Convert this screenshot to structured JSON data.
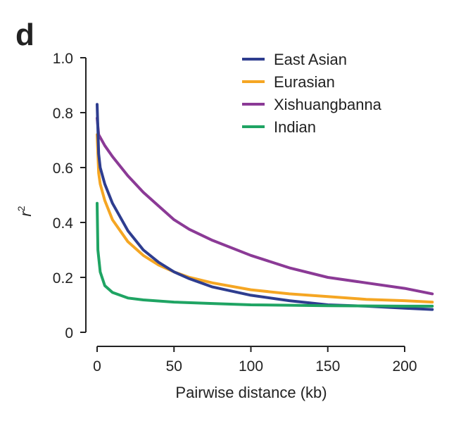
{
  "panel_label": "d",
  "chart_data": {
    "type": "line",
    "title": "",
    "xlabel": "Pairwise distance (kb)",
    "ylabel": "r",
    "ylabel_superscript": "2",
    "xlim": [
      0,
      218
    ],
    "ylim": [
      0,
      1.0
    ],
    "xticks": [
      0,
      50,
      100,
      150,
      200
    ],
    "yticks": [
      0,
      0.2,
      0.4,
      0.6,
      0.8,
      1.0
    ],
    "ytick_labels": [
      "0",
      "0.2",
      "0.4",
      "0.6",
      "0.8",
      "1.0"
    ],
    "grid": false,
    "legend_position": "top-right",
    "series": [
      {
        "name": "East Asian",
        "color": "#2e3d8f",
        "x": [
          0,
          1,
          2,
          5,
          10,
          20,
          30,
          40,
          50,
          60,
          75,
          100,
          125,
          150,
          175,
          200,
          218
        ],
        "y": [
          0.83,
          0.65,
          0.6,
          0.54,
          0.47,
          0.37,
          0.3,
          0.255,
          0.22,
          0.195,
          0.165,
          0.135,
          0.115,
          0.1,
          0.095,
          0.088,
          0.083
        ]
      },
      {
        "name": "Eurasian",
        "color": "#f5a623",
        "x": [
          0,
          1,
          2,
          5,
          10,
          20,
          30,
          40,
          50,
          60,
          75,
          100,
          125,
          150,
          175,
          200,
          218
        ],
        "y": [
          0.72,
          0.58,
          0.54,
          0.48,
          0.41,
          0.33,
          0.28,
          0.245,
          0.22,
          0.2,
          0.18,
          0.155,
          0.14,
          0.13,
          0.12,
          0.115,
          0.11
        ]
      },
      {
        "name": "Xishuangbanna",
        "color": "#8b3a96",
        "x": [
          0,
          1,
          5,
          10,
          20,
          30,
          40,
          50,
          60,
          75,
          100,
          125,
          150,
          175,
          200,
          218
        ],
        "y": [
          0.78,
          0.72,
          0.68,
          0.64,
          0.57,
          0.51,
          0.46,
          0.41,
          0.375,
          0.335,
          0.28,
          0.235,
          0.2,
          0.18,
          0.16,
          0.14
        ]
      },
      {
        "name": "Indian",
        "color": "#1fa463",
        "x": [
          0,
          0.5,
          2,
          5,
          10,
          20,
          30,
          50,
          75,
          100,
          150,
          200,
          218
        ],
        "y": [
          0.47,
          0.3,
          0.22,
          0.17,
          0.145,
          0.125,
          0.118,
          0.11,
          0.105,
          0.1,
          0.097,
          0.095,
          0.095
        ]
      }
    ]
  }
}
